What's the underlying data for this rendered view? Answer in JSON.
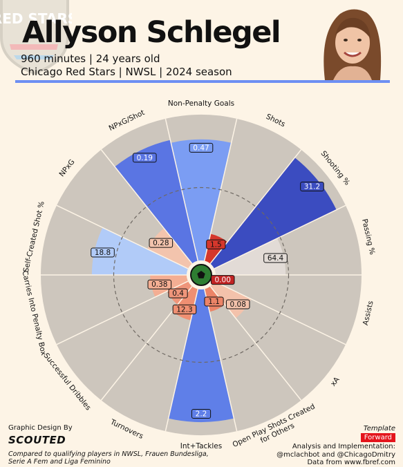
{
  "header": {
    "name": "Allyson Schlegel",
    "line1": "960 minutes | 24 years old",
    "line2": "Chicago Red Stars | NWSL | 2024 season",
    "crest_text": "RED STARS"
  },
  "chart_data": {
    "type": "polar-bar",
    "range": [
      0,
      100
    ],
    "categories": [
      {
        "label": "Non-Penalty Goals",
        "pct": 83,
        "value": "0.47",
        "color": "#7b9df3"
      },
      {
        "label": "Shots",
        "pct": 19,
        "value": "1.5",
        "color": "#d5372c"
      },
      {
        "label": "Shooting %",
        "pct": 93,
        "value": "31.2",
        "color": "#3b4cc0"
      },
      {
        "label": "Passing %",
        "pct": 48,
        "value": "64.4",
        "color": "#e2dbd6"
      },
      {
        "label": "Assists",
        "pct": 2,
        "value": "0.00",
        "color": "#c22424"
      },
      {
        "label": "xA",
        "pct": 28,
        "value": "0.08",
        "color": "#f3c2ab"
      },
      {
        "label": "Open Play Shots Created for Others",
        "pct": 16,
        "value": "1.1",
        "color": "#ec8467"
      },
      {
        "label": "Int+Tackles",
        "pct": 91,
        "value": "2.2",
        "color": "#5f7fe8"
      },
      {
        "label": "Turnovers",
        "pct": 22,
        "value": "12.3",
        "color": "#ef8f72"
      },
      {
        "label": "Successful Dribbles",
        "pct": 16,
        "value": "0.4",
        "color": "#ef957a"
      },
      {
        "label": "Carries Into Penalty Box",
        "pct": 25,
        "value": "0.38",
        "color": "#f4ae93"
      },
      {
        "label": "Self-Created Shot %",
        "pct": 65,
        "value": "18.8",
        "color": "#b1cbf8"
      },
      {
        "label": "NPxG",
        "pct": 31,
        "value": "0.28",
        "color": "#f3c4ad"
      },
      {
        "label": "NPxG/Shot",
        "pct": 85,
        "value": "0.19",
        "color": "#5a75e3"
      }
    ]
  },
  "footer": {
    "design_label": "Graphic Design By",
    "logo": "SCOUTED",
    "compare": "Compared to qualifying players in NWSL, Frauen Bundesliga, Serie A Fem and Liga Feminino",
    "template_label": "Template",
    "role": "Forward",
    "analysis1": "Analysis and Implementation:",
    "analysis2": "@mclachbot and @ChicagoDmitry",
    "analysis3": "Data from www.fbref.com"
  }
}
